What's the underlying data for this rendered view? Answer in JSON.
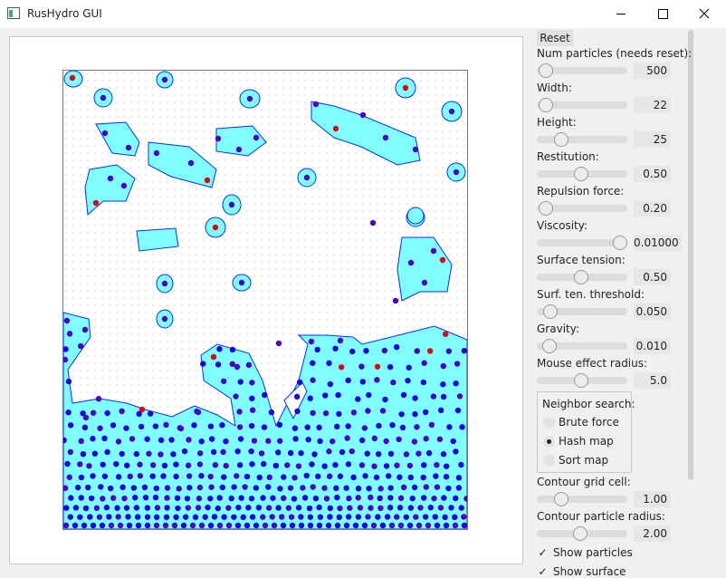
{
  "window": {
    "title": "RusHydro GUI"
  },
  "panel": {
    "reset": "Reset",
    "controls": [
      {
        "label": "Num particles (needs reset):",
        "value": "500"
      },
      {
        "label": "Width:",
        "value": "22"
      },
      {
        "label": "Height:",
        "value": "25"
      },
      {
        "label": "Restitution:",
        "value": "0.50"
      },
      {
        "label": "Repulsion force:",
        "value": "0.20"
      },
      {
        "label": "Viscosity:",
        "value": "0.01000"
      },
      {
        "label": "Surface tension:",
        "value": "0.50"
      },
      {
        "label": "Surf. ten. threshold:",
        "value": "0.050"
      },
      {
        "label": "Gravity:",
        "value": "0.010"
      },
      {
        "label": "Mouse effect radius:",
        "value": "5.0"
      }
    ],
    "neighbor_search": {
      "title": "Neighbor search:",
      "options": [
        {
          "label": "Brute force",
          "selected": false
        },
        {
          "label": "Hash map",
          "selected": true
        },
        {
          "label": "Sort map",
          "selected": false
        }
      ]
    },
    "contour": [
      {
        "label": "Contour grid cell:",
        "value": "1.00"
      },
      {
        "label": "Contour particle radius:",
        "value": "2.00"
      }
    ],
    "checkboxes": [
      {
        "label": "Show particles",
        "checked": true
      },
      {
        "label": "Show surface",
        "checked": true
      }
    ]
  }
}
